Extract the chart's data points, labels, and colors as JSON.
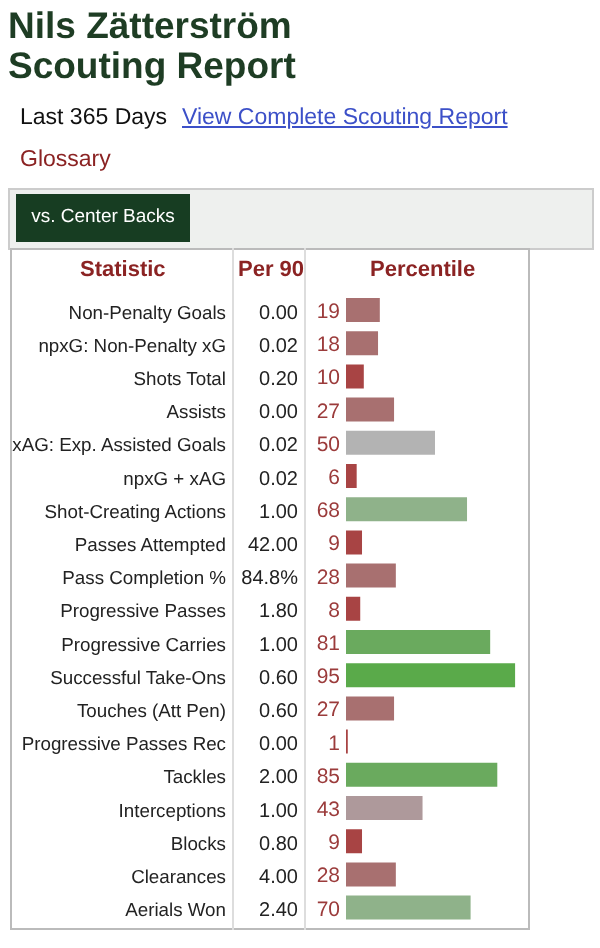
{
  "chart_data": {
    "type": "bar",
    "orientation": "horizontal",
    "title": "Nils Zätterström Scouting Report",
    "subtitle": "Last 365 Days",
    "ylabel": "Statistic",
    "xlabel": "Percentile",
    "categories": [
      "Non-Penalty Goals",
      "npxG: Non-Penalty xG",
      "Shots Total",
      "Assists",
      "xAG: Exp. Assisted Goals",
      "npxG + xAG",
      "Shot-Creating Actions",
      "Passes Attempted",
      "Pass Completion %",
      "Progressive Passes",
      "Progressive Carries",
      "Successful Take-Ons",
      "Touches (Att Pen)",
      "Progressive Passes Rec",
      "Tackles",
      "Interceptions",
      "Blocks",
      "Clearances",
      "Aerials Won"
    ],
    "values": [
      19,
      18,
      10,
      27,
      50,
      6,
      68,
      9,
      28,
      8,
      81,
      95,
      27,
      1,
      85,
      43,
      9,
      28,
      70
    ],
    "colors": [
      "#a87070",
      "#a87070",
      "#a84444",
      "#a87070",
      "#b3b3b3",
      "#a84444",
      "#8fb28a",
      "#a84444",
      "#a87070",
      "#a84444",
      "#6aaa5e",
      "#5aaa4a",
      "#a87070",
      "#a84444",
      "#6aaa5e",
      "#ae999b",
      "#a84444",
      "#a87070",
      "#8fb28a"
    ],
    "data_labels": true,
    "xlim": [
      0,
      100
    ],
    "tick_labels": "y",
    "annotations": [
      "0.00",
      "0.02",
      "0.20",
      "0.00",
      "0.02",
      "0.02",
      "1.00",
      "42.00",
      "84.8%",
      "1.80",
      "1.00",
      "0.60",
      "0.60",
      "0.00",
      "2.00",
      "1.00",
      "0.80",
      "4.00",
      "2.40",
      "Per 90",
      "View Complete Scouting Report",
      "Glossary",
      "vs. Center Backs"
    ]
  }
}
